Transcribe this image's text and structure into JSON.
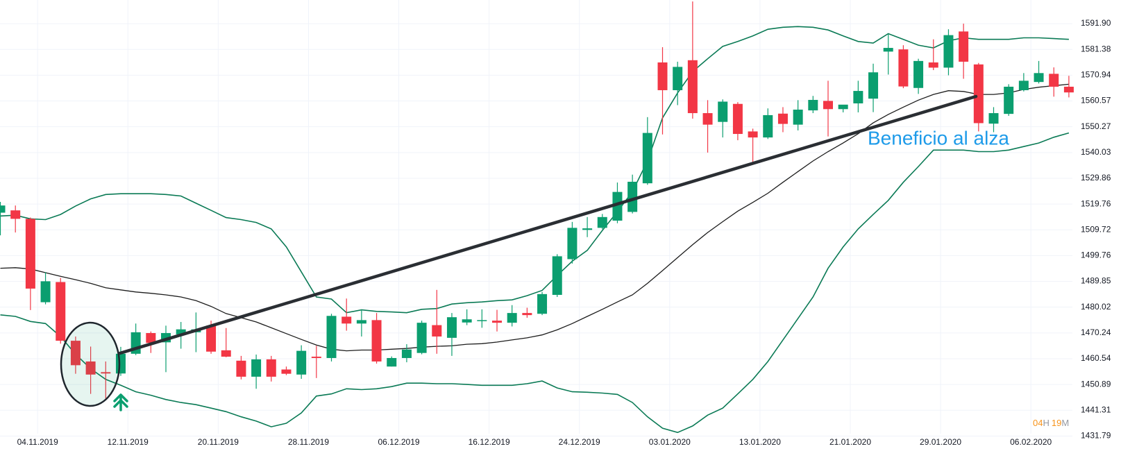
{
  "chart_data": {
    "type": "candlestick",
    "log": true,
    "grid": true,
    "up_color": "#0b9e6f",
    "down_color": "#f23645",
    "band_color": "#0a7a55",
    "middle_color": "#1c1c1c",
    "annotation": "Beneficio al alza",
    "countdown": [
      "04",
      "H",
      "19",
      "M"
    ],
    "ylim": [
      1426.3,
      1601.6
    ],
    "yticks": [
      {
        "value": 1591.9,
        "label": "1591.90"
      },
      1581.38,
      1570.94,
      1560.57,
      1550.27,
      1540.03,
      1529.86,
      1519.76,
      1509.72,
      1499.76,
      1489.85,
      1480.02,
      1470.24,
      1460.54,
      1450.89,
      1441.31,
      1431.79
    ],
    "categories": [
      null,
      null,
      "04.11.2019",
      null,
      null,
      null,
      null,
      null,
      "12.11.2019",
      null,
      null,
      null,
      null,
      null,
      "20.11.2019",
      null,
      null,
      null,
      null,
      null,
      "28.11.2019",
      null,
      null,
      null,
      null,
      null,
      "06.12.2019",
      null,
      null,
      null,
      null,
      null,
      "16.12.2019",
      null,
      null,
      null,
      null,
      null,
      "24.12.2019",
      null,
      null,
      null,
      null,
      null,
      "03.01.2020",
      null,
      null,
      null,
      null,
      null,
      "13.01.2020",
      null,
      null,
      null,
      null,
      null,
      "21.01.2020",
      null,
      null,
      null,
      null,
      null,
      "29.01.2020",
      null,
      null,
      null,
      null,
      null,
      "06.02.2020",
      null,
      null,
      null
    ],
    "open": [
      1516.4,
      1517.3,
      1514.0,
      1481.9,
      1489.6,
      1467.3,
      1459.5,
      1455.5,
      1455.0,
      1462.4,
      1470.2,
      1466.7,
      1469.7,
      1470.5,
      1473.0,
      1463.7,
      1459.8,
      1453.8,
      1460.3,
      1456.5,
      1454.6,
      1461.3,
      1460.8,
      1476.4,
      1473.8,
      1475.1,
      1457.6,
      1460.8,
      1462.7,
      1473.2,
      1468.4,
      1474.2,
      1474.7,
      1474.9,
      1474.1,
      1477.8,
      1477.5,
      1484.7,
      1498.4,
      1509.7,
      1510.5,
      1513.3,
      1516.7,
      1527.9,
      1576.1,
      1564.9,
      1577.0,
      1555.7,
      1552.2,
      1559.4,
      1548.4,
      1546.0,
      1555.5,
      1551.1,
      1556.8,
      1560.6,
      1557.3,
      1559.6,
      1561.5,
      1580.5,
      1581.4,
      1565.8,
      1576.1,
      1574.0,
      1588.7,
      1575.3,
      1551.5,
      1555.4,
      1564.9,
      1568.2,
      1571.5,
      1566.3
    ],
    "high": [
      1520.6,
      1519.2,
      1514.5,
      1493.4,
      1491.2,
      1468.9,
      1465.1,
      1459.5,
      1465.0,
      1473.8,
      1470.8,
      1473.0,
      1474.4,
      1478.0,
      1474.9,
      1472.1,
      1461.6,
      1462.1,
      1461.6,
      1457.6,
      1465.6,
      1465.4,
      1477.5,
      1483.3,
      1479.2,
      1477.8,
      1461.4,
      1466.0,
      1474.9,
      1486.6,
      1477.8,
      1479.2,
      1479.2,
      1479.0,
      1480.8,
      1479.8,
      1485.8,
      1500.3,
      1512.8,
      1514.7,
      1515.9,
      1528.2,
      1531.3,
      1554.1,
      1582.3,
      1576.4,
      1601.0,
      1560.9,
      1561.2,
      1560.1,
      1549.5,
      1557.6,
      1558.1,
      1560.9,
      1562.6,
      1568.7,
      1558.9,
      1568.7,
      1575.6,
      1587.6,
      1583.1,
      1577.6,
      1585.5,
      1589.6,
      1591.9,
      1575.9,
      1558.1,
      1567.3,
      1571.8,
      1576.7,
      1574.1,
      1570.7
    ],
    "low": [
      1507.6,
      1508.7,
      1478.9,
      1481.1,
      1466.2,
      1454.9,
      1447.4,
      1445.6,
      1454.1,
      1461.9,
      1462.7,
      1455.5,
      1464.3,
      1463.0,
      1462.4,
      1461.1,
      1452.8,
      1449.3,
      1452.0,
      1454.4,
      1453.0,
      1453.3,
      1459.5,
      1471.1,
      1468.9,
      1458.7,
      1457.6,
      1459.2,
      1462.2,
      1462.4,
      1461.6,
      1473.2,
      1472.2,
      1470.8,
      1472.7,
      1476.0,
      1477.0,
      1483.9,
      1496.7,
      1506.9,
      1510.0,
      1512.3,
      1516.1,
      1527.3,
      1547.2,
      1558.9,
      1553.5,
      1540.0,
      1546.0,
      1544.9,
      1535.3,
      1545.4,
      1548.1,
      1548.8,
      1555.7,
      1546.4,
      1556.0,
      1556.0,
      1556.1,
      1571.2,
      1565.7,
      1563.4,
      1573.0,
      1570.9,
      1569.5,
      1548.4,
      1548.1,
      1554.6,
      1564.4,
      1567.6,
      1562.3,
      1562.0
    ],
    "close": [
      1519.2,
      1514.0,
      1487.1,
      1489.9,
      1467.3,
      1458.1,
      1454.6,
      1455.0,
      1462.4,
      1470.5,
      1466.5,
      1470.2,
      1471.6,
      1471.6,
      1463.2,
      1461.3,
      1453.8,
      1460.3,
      1453.8,
      1454.9,
      1463.5,
      1460.8,
      1476.7,
      1473.8,
      1475.1,
      1459.5,
      1460.8,
      1464.0,
      1474.1,
      1468.9,
      1476.2,
      1475.4,
      1475.1,
      1474.1,
      1477.8,
      1477.0,
      1485.0,
      1499.5,
      1510.5,
      1510.3,
      1514.7,
      1524.5,
      1528.5,
      1547.8,
      1564.9,
      1574.3,
      1555.7,
      1551.1,
      1560.3,
      1547.4,
      1546.0,
      1554.9,
      1551.4,
      1557.1,
      1561.0,
      1557.3,
      1559.1,
      1564.6,
      1572.1,
      1582.0,
      1566.4,
      1576.7,
      1574.0,
      1587.2,
      1576.4,
      1551.7,
      1555.7,
      1566.3,
      1568.7,
      1571.8,
      1566.3,
      1564.0
    ],
    "bands": {
      "upper": [
        1515.1,
        1515.4,
        1514.0,
        1513.7,
        1515.7,
        1519.0,
        1521.8,
        1523.5,
        1523.8,
        1523.8,
        1523.8,
        1523.5,
        1522.9,
        1520.1,
        1517.3,
        1514.5,
        1513.7,
        1512.6,
        1510.1,
        1503.1,
        1493.5,
        1483.9,
        1483.1,
        1477.9,
        1479.0,
        1478.4,
        1478.2,
        1477.9,
        1479.2,
        1479.5,
        1481.2,
        1481.7,
        1482.0,
        1482.5,
        1482.8,
        1484.4,
        1486.4,
        1492.1,
        1497.6,
        1501.8,
        1509.5,
        1516.8,
        1524.6,
        1536.7,
        1553.8,
        1563.8,
        1572.4,
        1577.6,
        1582.6,
        1584.6,
        1586.9,
        1589.6,
        1590.4,
        1590.7,
        1590.4,
        1589.3,
        1586.9,
        1584.6,
        1584.0,
        1587.8,
        1585.5,
        1583.1,
        1582.0,
        1584.9,
        1586.1,
        1585.5,
        1585.5,
        1585.5,
        1586.1,
        1586.1,
        1585.8,
        1585.5
      ],
      "middle": [
        1494.9,
        1495.1,
        1494.6,
        1493.2,
        1491.8,
        1490.5,
        1489.1,
        1487.4,
        1486.6,
        1485.8,
        1485.3,
        1484.7,
        1483.9,
        1482.5,
        1480.3,
        1477.6,
        1476.0,
        1474.4,
        1472.2,
        1470.0,
        1467.8,
        1465.7,
        1464.1,
        1463.5,
        1463.8,
        1463.8,
        1464.1,
        1464.4,
        1464.9,
        1465.2,
        1465.4,
        1466.0,
        1466.2,
        1466.8,
        1467.6,
        1468.4,
        1469.5,
        1471.4,
        1473.8,
        1476.5,
        1479.2,
        1482.0,
        1484.7,
        1489.1,
        1494.0,
        1499.0,
        1504.0,
        1508.7,
        1512.9,
        1517.0,
        1520.4,
        1524.0,
        1528.3,
        1532.5,
        1536.7,
        1540.4,
        1543.8,
        1547.5,
        1551.8,
        1555.2,
        1558.1,
        1560.9,
        1563.2,
        1564.7,
        1564.4,
        1563.2,
        1563.2,
        1563.8,
        1565.2,
        1566.1,
        1566.7,
        1567.3
      ],
      "lower": [
        1477.1,
        1476.5,
        1474.6,
        1473.8,
        1468.9,
        1462.2,
        1456.8,
        1452.8,
        1450.6,
        1448.2,
        1446.9,
        1445.3,
        1444.2,
        1443.4,
        1442.1,
        1440.8,
        1438.9,
        1437.3,
        1435.2,
        1436.5,
        1440.3,
        1446.6,
        1447.4,
        1449.3,
        1449.0,
        1449.3,
        1450.1,
        1451.4,
        1451.4,
        1451.2,
        1451.2,
        1450.9,
        1450.6,
        1450.6,
        1450.6,
        1451.2,
        1452.2,
        1449.6,
        1448.2,
        1448.0,
        1447.7,
        1447.2,
        1444.2,
        1438.9,
        1434.7,
        1433.1,
        1435.5,
        1439.5,
        1442.1,
        1447.4,
        1452.8,
        1459.5,
        1467.6,
        1475.7,
        1483.9,
        1494.9,
        1503.1,
        1510.1,
        1515.7,
        1521.2,
        1528.3,
        1534.5,
        1541.0,
        1541.0,
        1541.0,
        1540.4,
        1540.4,
        1541.0,
        1542.4,
        1543.8,
        1546.1,
        1547.8
      ]
    }
  }
}
